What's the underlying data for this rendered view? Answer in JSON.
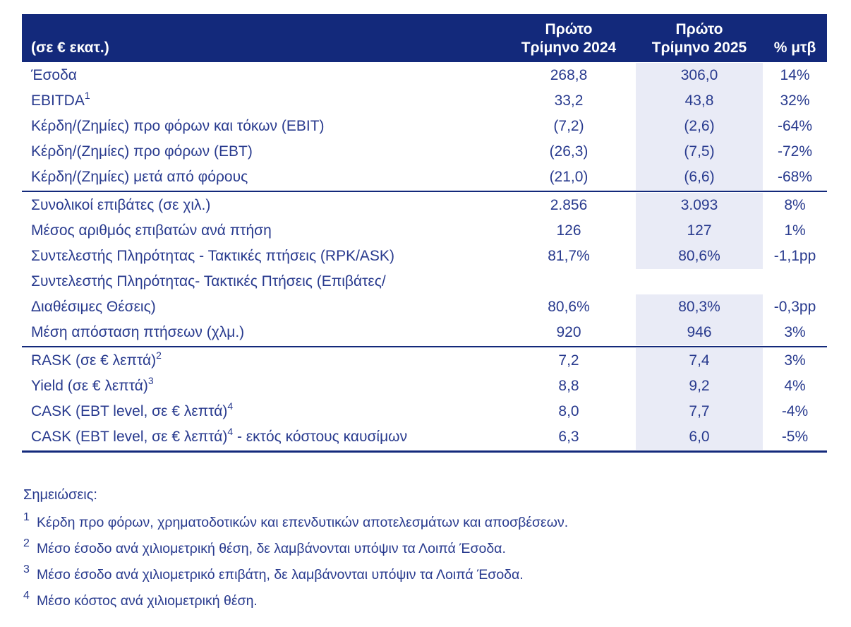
{
  "colors": {
    "header_bg": "#13297B",
    "text": "#283A8E",
    "highlight": "#E9EBF6",
    "border": "#13297B"
  },
  "table": {
    "header": {
      "unit_label": "(σε € εκατ.)",
      "col_2024_line1": "Πρώτο",
      "col_2024_line2": "Τρίμηνο 2024",
      "col_2025_line1": "Πρώτο",
      "col_2025_line2": "Τρίμηνο 2025",
      "col_change": "% μτβ"
    },
    "sections": [
      {
        "rows": [
          {
            "label": "Έσοδα",
            "v2024": "268,8",
            "v2025": "306,0",
            "chg": "14%"
          },
          {
            "label": "EBITDA",
            "sup": "1",
            "v2024": "33,2",
            "v2025": "43,8",
            "chg": "32%"
          },
          {
            "label": "Κέρδη/(Ζημίες) προ φόρων και τόκων (EBIT)",
            "v2024": "(7,2)",
            "v2025": "(2,6)",
            "chg": "-64%"
          },
          {
            "label": "Κέρδη/(Ζημίες) προ φόρων (EBT)",
            "v2024": "(26,3)",
            "v2025": "(7,5)",
            "chg": "-72%"
          },
          {
            "label": "Κέρδη/(Ζημίες) μετά από φόρους",
            "v2024": "(21,0)",
            "v2025": "(6,6)",
            "chg": "-68%"
          }
        ]
      },
      {
        "rows": [
          {
            "label": "Συνολικοί επιβάτες (σε χιλ.)",
            "v2024": "2.856",
            "v2025": "3.093",
            "chg": "8%"
          },
          {
            "label": "Μέσος αριθμός επιβατών ανά πτήση",
            "v2024": "126",
            "v2025": "127",
            "chg": "1%"
          },
          {
            "label": "Συντελεστής Πληρότητας - Τακτικές πτήσεις (RPK/ASK)",
            "v2024": "81,7%",
            "v2025": "80,6%",
            "chg": "-1,1pp"
          },
          {
            "label": "Συντελεστής Πληρότητας- Τακτικές Πτήσεις (Επιβάτες/",
            "label2": "Διαθέσιμες Θέσεις)",
            "v2024": "80,6%",
            "v2025": "80,3%",
            "chg": "-0,3pp"
          },
          {
            "label": "Μέση απόσταση πτήσεων (χλμ.)",
            "v2024": "920",
            "v2025": "946",
            "chg": "3%"
          }
        ]
      },
      {
        "rows": [
          {
            "label": "RASK (σε € λεπτά)",
            "sup": "2",
            "v2024": "7,2",
            "v2025": "7,4",
            "chg": "3%"
          },
          {
            "label": "Yield (σε € λεπτά)",
            "sup": "3",
            "v2024": "8,8",
            "v2025": "9,2",
            "chg": "4%"
          },
          {
            "label": "CASK (EBT level, σε € λεπτά)",
            "sup": "4",
            "v2024": "8,0",
            "v2025": "7,7",
            "chg": "-4%"
          },
          {
            "label": "CASK (EBT level, σε € λεπτά)",
            "sup": "4",
            "post": " - εκτός κόστους καυσίμων",
            "v2024": "6,3",
            "v2025": "6,0",
            "chg": "-5%"
          }
        ]
      }
    ]
  },
  "notes": {
    "title": "Σημειώσεις:",
    "items": [
      {
        "sup": "1",
        "text": "Κέρδη προ φόρων, χρηματοδοτικών και επενδυτικών αποτελεσμάτων και αποσβέσεων."
      },
      {
        "sup": "2",
        "text": "Μέσο έσοδο ανά χιλιομετρική θέση, δε λαμβάνονται υπόψιν τα Λοιπά Έσοδα."
      },
      {
        "sup": "3",
        "text": "Μέσο έσοδο ανά χιλιομετρικό επιβάτη, δε λαμβάνονται υπόψιν τα Λοιπά Έσοδα."
      },
      {
        "sup": "4",
        "text": "Μέσο κόστος ανά χιλιομετρική θέση."
      }
    ]
  }
}
